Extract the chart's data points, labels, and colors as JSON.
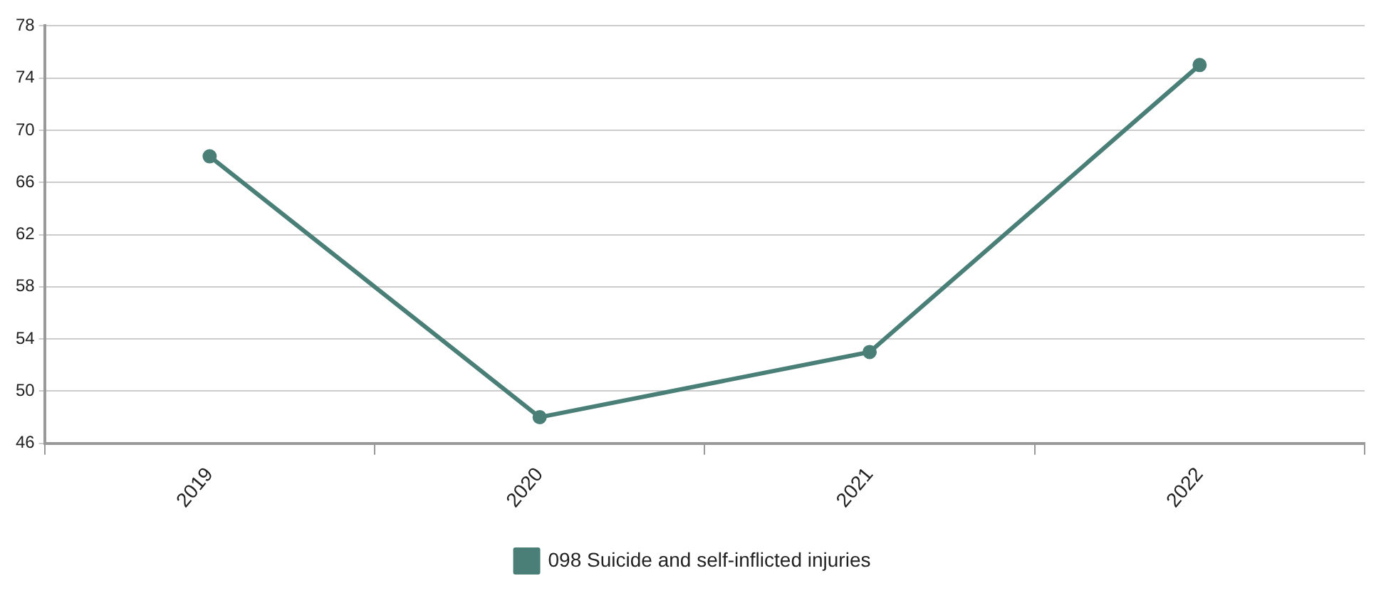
{
  "chart_data": {
    "type": "line",
    "categories": [
      "2019",
      "2020",
      "2021",
      "2022"
    ],
    "series": [
      {
        "name": "098 Suicide and self-inflicted injuries",
        "color": "#4a7f78",
        "values": [
          68,
          48,
          53,
          75
        ]
      }
    ],
    "ylim": [
      46,
      78
    ],
    "yticks": [
      46,
      50,
      54,
      58,
      62,
      66,
      70,
      74,
      78
    ],
    "grid": "y",
    "legend": "bottom",
    "marker": "circle",
    "line_style": "solid"
  }
}
